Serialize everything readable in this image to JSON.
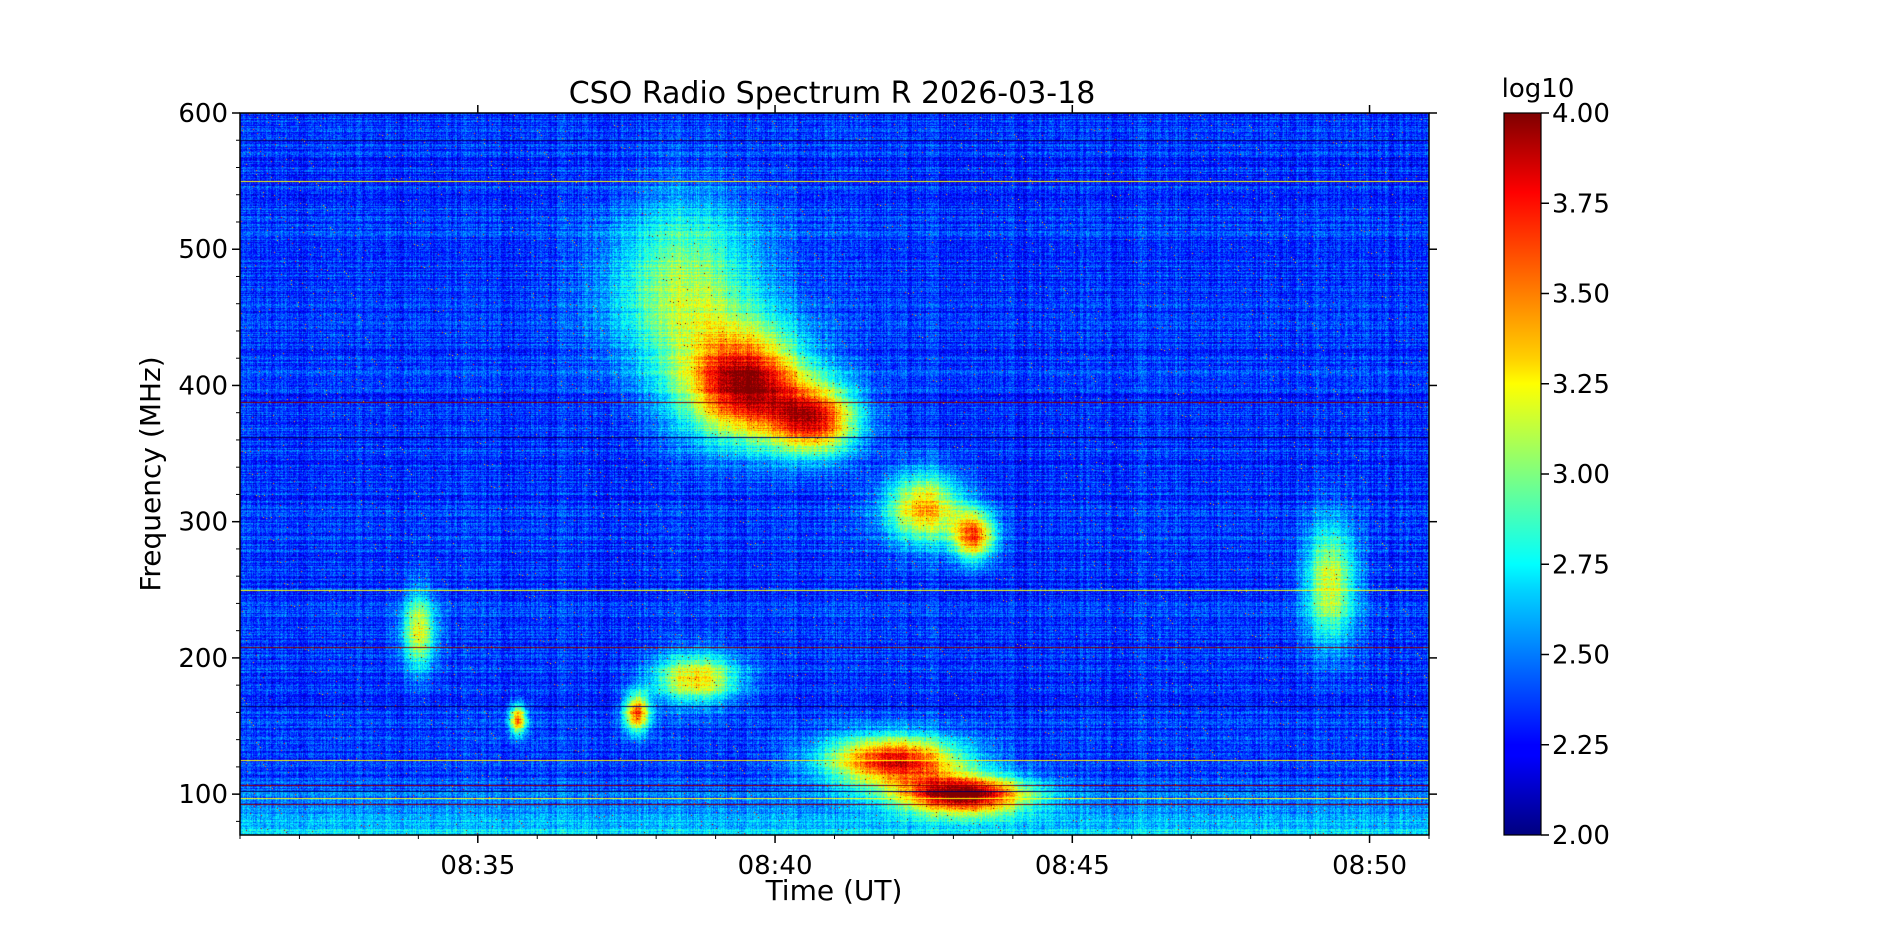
{
  "chart_data": {
    "type": "heatmap",
    "title": "CSO Radio Spectrum R 2026-03-18",
    "xlabel": "Time (UT)",
    "ylabel": "Frequency (MHz)",
    "x_start": "08:31:00",
    "x_end": "08:51:00",
    "x_ticks": [
      "08:35",
      "08:40",
      "08:45",
      "08:50"
    ],
    "ylim": [
      70,
      600
    ],
    "y_ticks": [
      100,
      200,
      300,
      400,
      500,
      600
    ],
    "colorbar": {
      "label": "log10",
      "colormap": "jet",
      "vmin": 2.0,
      "vmax": 4.0,
      "ticks": [
        "2.00",
        "2.25",
        "2.50",
        "2.75",
        "3.00",
        "3.25",
        "3.50",
        "3.75",
        "4.00"
      ]
    },
    "background_level": 2.35,
    "features": [
      {
        "name": "broadband continuum",
        "time": "08:39:30",
        "freq_center_mhz": 400,
        "time_width_min": 1.4,
        "freq_width_mhz": 55,
        "peak_log10": 3.9
      },
      {
        "name": "drifting emission",
        "time": "08:40:40",
        "freq_center_mhz": 375,
        "time_width_min": 1.0,
        "freq_width_mhz": 35,
        "peak_log10": 3.65
      },
      {
        "name": "drifting emission",
        "time": "08:42:30",
        "freq_center_mhz": 310,
        "time_width_min": 0.9,
        "freq_width_mhz": 35,
        "peak_log10": 3.4
      },
      {
        "name": "drifting emission",
        "time": "08:43:20",
        "freq_center_mhz": 290,
        "time_width_min": 0.5,
        "freq_width_mhz": 25,
        "peak_log10": 3.55
      },
      {
        "name": "diffuse emission",
        "time": "08:38:30",
        "freq_center_mhz": 470,
        "time_width_min": 1.8,
        "freq_width_mhz": 90,
        "peak_log10": 3.1
      },
      {
        "name": "diffuse emission",
        "time": "08:49:20",
        "freq_center_mhz": 255,
        "time_width_min": 0.6,
        "freq_width_mhz": 60,
        "peak_log10": 3.2
      },
      {
        "name": "burst group",
        "time": "08:34:00",
        "freq_center_mhz": 220,
        "time_width_min": 0.4,
        "freq_width_mhz": 40,
        "peak_log10": 3.2
      },
      {
        "name": "burst group",
        "time": "08:35:40",
        "freq_center_mhz": 155,
        "time_width_min": 0.2,
        "freq_width_mhz": 15,
        "peak_log10": 3.5
      },
      {
        "name": "burst group",
        "time": "08:37:40",
        "freq_center_mhz": 160,
        "time_width_min": 0.3,
        "freq_width_mhz": 20,
        "peak_log10": 3.6
      },
      {
        "name": "burst group",
        "time": "08:38:40",
        "freq_center_mhz": 185,
        "time_width_min": 1.0,
        "freq_width_mhz": 25,
        "peak_log10": 3.35
      },
      {
        "name": "type II-like band",
        "time": "08:42:00",
        "freq_center_mhz": 125,
        "time_width_min": 1.6,
        "freq_width_mhz": 25,
        "peak_log10": 3.8
      },
      {
        "name": "type II-like band",
        "time": "08:43:10",
        "freq_center_mhz": 100,
        "time_width_min": 1.5,
        "freq_width_mhz": 20,
        "peak_log10": 3.95
      }
    ],
    "rfi_lines_mhz": [
      93,
      97,
      102,
      107,
      125,
      165,
      208,
      250,
      362,
      388,
      550,
      580
    ]
  }
}
